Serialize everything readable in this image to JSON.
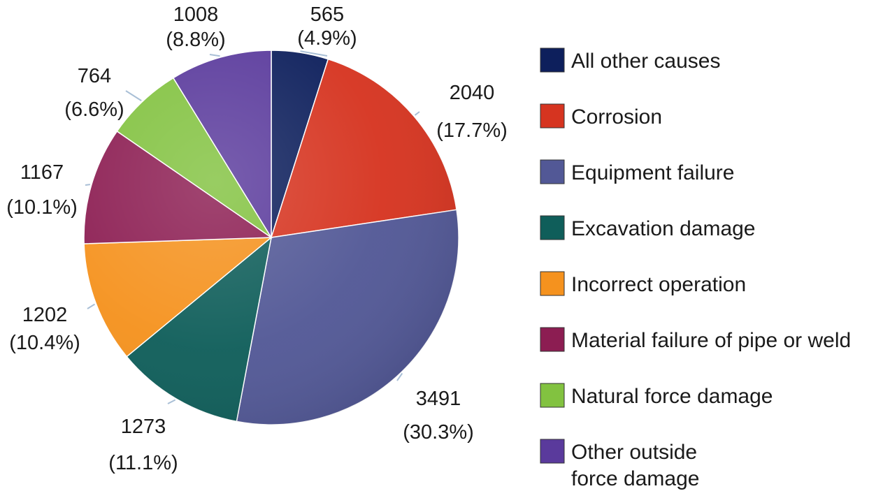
{
  "chart_data": {
    "type": "pie",
    "title": "",
    "legend_position": "right",
    "slices": [
      {
        "label": "All other causes",
        "value": 565,
        "percent_label": "(4.9%)",
        "color": "#0d1f5c"
      },
      {
        "label": "Corrosion",
        "value": 2040,
        "percent_label": "(17.7%)",
        "color": "#d63420"
      },
      {
        "label": "Equipment failure",
        "value": 3491,
        "percent_label": "(30.3%)",
        "color": "#525896"
      },
      {
        "label": "Excavation damage",
        "value": 1273,
        "percent_label": "(11.1%)",
        "color": "#0f5e5a"
      },
      {
        "label": "Incorrect operation",
        "value": 1202,
        "percent_label": "(10.4%)",
        "color": "#f5921e"
      },
      {
        "label": "Material failure of pipe or weld",
        "value": 1167,
        "percent_label": "(10.1%)",
        "color": "#8c1d52"
      },
      {
        "label": "Natural force damage",
        "value": 764,
        "percent_label": "(6.6%)",
        "color": "#82c240"
      },
      {
        "label": "Other outside force damage",
        "value": 1008,
        "percent_label": "(8.8%)",
        "color": "#5a3a9c"
      }
    ],
    "legend_lines": [
      [
        "All other causes"
      ],
      [
        "Corrosion"
      ],
      [
        "Equipment failure"
      ],
      [
        "Excavation damage"
      ],
      [
        "Incorrect operation"
      ],
      [
        "Material failure of pipe or weld"
      ],
      [
        "Natural force damage"
      ],
      [
        "Other outside",
        "force damage"
      ]
    ]
  }
}
